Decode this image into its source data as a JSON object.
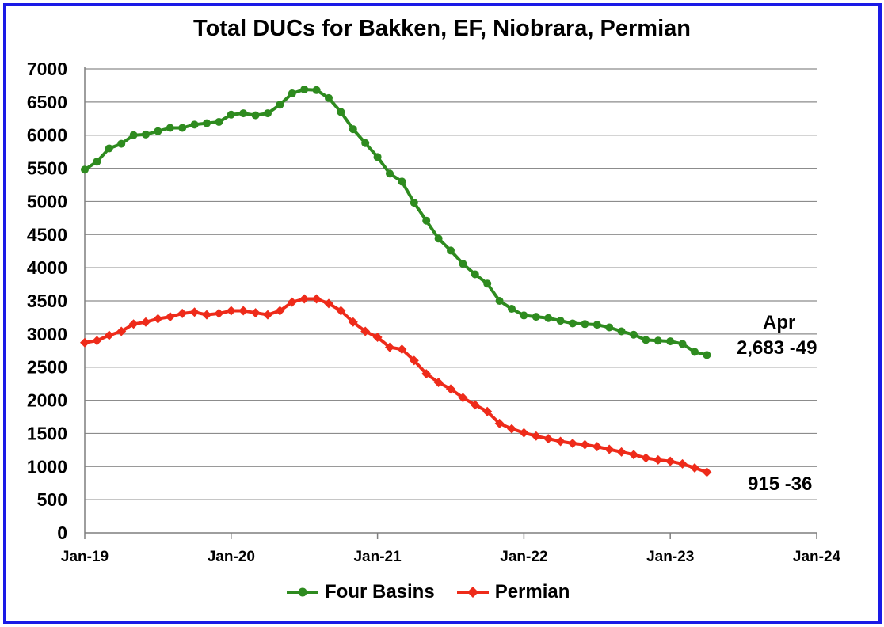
{
  "chart_data": {
    "type": "line",
    "title": "Total DUCs for Bakken, EF, Niobrara, Permian",
    "xlabel": "",
    "ylabel": "",
    "x_tick_labels": [
      "Jan-19",
      "Jan-20",
      "Jan-21",
      "Jan-22",
      "Jan-23",
      "Jan-24"
    ],
    "ylim": [
      0,
      7000
    ],
    "y_ticks": [
      0,
      500,
      1000,
      1500,
      2000,
      2500,
      3000,
      3500,
      4000,
      4500,
      5000,
      5500,
      6000,
      6500,
      7000
    ],
    "grid": "horizontal",
    "legend_position": "bottom",
    "x": [
      "Jan-19",
      "Feb-19",
      "Mar-19",
      "Apr-19",
      "May-19",
      "Jun-19",
      "Jul-19",
      "Aug-19",
      "Sep-19",
      "Oct-19",
      "Nov-19",
      "Dec-19",
      "Jan-20",
      "Feb-20",
      "Mar-20",
      "Apr-20",
      "May-20",
      "Jun-20",
      "Jul-20",
      "Aug-20",
      "Sep-20",
      "Oct-20",
      "Nov-20",
      "Dec-20",
      "Jan-21",
      "Feb-21",
      "Mar-21",
      "Apr-21",
      "May-21",
      "Jun-21",
      "Jul-21",
      "Aug-21",
      "Sep-21",
      "Oct-21",
      "Nov-21",
      "Dec-21",
      "Jan-22",
      "Feb-22",
      "Mar-22",
      "Apr-22",
      "May-22",
      "Jun-22",
      "Jul-22",
      "Aug-22",
      "Sep-22",
      "Oct-22",
      "Nov-22",
      "Dec-22",
      "Jan-23",
      "Feb-23",
      "Mar-23",
      "Apr-23"
    ],
    "series": [
      {
        "name": "Four Basins",
        "color": "#2e8b1f",
        "marker": "circle",
        "values": [
          5480,
          5600,
          5800,
          5870,
          6000,
          6010,
          6060,
          6110,
          6110,
          6160,
          6180,
          6200,
          6310,
          6330,
          6300,
          6330,
          6460,
          6630,
          6690,
          6680,
          6560,
          6350,
          6090,
          5880,
          5670,
          5420,
          5300,
          4980,
          4710,
          4440,
          4260,
          4060,
          3900,
          3760,
          3500,
          3380,
          3280,
          3260,
          3240,
          3200,
          3160,
          3150,
          3140,
          3100,
          3040,
          2990,
          2910,
          2900,
          2890,
          2850,
          2730,
          2683
        ]
      },
      {
        "name": "Permian",
        "color": "#ee2b1a",
        "marker": "diamond",
        "values": [
          2870,
          2900,
          2980,
          3040,
          3150,
          3180,
          3230,
          3260,
          3310,
          3330,
          3290,
          3310,
          3350,
          3350,
          3320,
          3290,
          3350,
          3480,
          3530,
          3530,
          3460,
          3350,
          3180,
          3040,
          2950,
          2800,
          2770,
          2600,
          2400,
          2270,
          2170,
          2040,
          1930,
          1830,
          1650,
          1570,
          1510,
          1460,
          1420,
          1380,
          1350,
          1330,
          1300,
          1260,
          1220,
          1180,
          1130,
          1100,
          1080,
          1040,
          980,
          915
        ]
      }
    ],
    "annotations": [
      {
        "label": "Apr"
      },
      {
        "label": "2,683 -49"
      },
      {
        "label": "915 -36"
      }
    ]
  }
}
